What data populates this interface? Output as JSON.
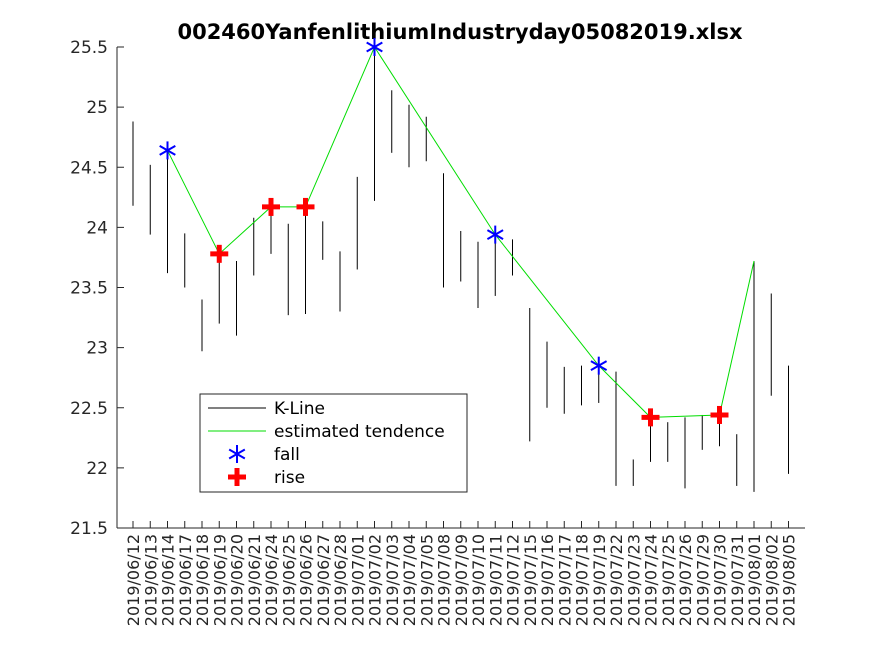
{
  "chart_data": {
    "type": "line",
    "title": "002460YanfenlithiumIndustryday05082019.xlsx",
    "xlabel": "",
    "ylabel": "",
    "ylim": [
      21.5,
      25.5
    ],
    "yticks": [
      21.5,
      22,
      22.5,
      23,
      23.5,
      24,
      24.5,
      25,
      25.5
    ],
    "ytick_labels": [
      "21.5",
      "22",
      "22.5",
      "23",
      "23.5",
      "24",
      "24.5",
      "25",
      "25.5"
    ],
    "categories": [
      "2019/06/12",
      "2019/06/13",
      "2019/06/14",
      "2019/06/17",
      "2019/06/18",
      "2019/06/19",
      "2019/06/20",
      "2019/06/21",
      "2019/06/24",
      "2019/06/25",
      "2019/06/26",
      "2019/06/27",
      "2019/06/28",
      "2019/07/01",
      "2019/07/02",
      "2019/07/03",
      "2019/07/04",
      "2019/07/05",
      "2019/07/08",
      "2019/07/09",
      "2019/07/10",
      "2019/07/11",
      "2019/07/12",
      "2019/07/15",
      "2019/07/16",
      "2019/07/17",
      "2019/07/18",
      "2019/07/19",
      "2019/07/22",
      "2019/07/23",
      "2019/07/24",
      "2019/07/25",
      "2019/07/26",
      "2019/07/29",
      "2019/07/30",
      "2019/07/31",
      "2019/08/01",
      "2019/08/02",
      "2019/08/05"
    ],
    "xtick_labels": [
      "2019/06/12",
      "2019/06/13",
      "2019/06/14",
      "2019/06/17",
      "2019/06/18",
      "2019/06/19",
      "2019/06/20",
      "2019/06/21",
      "2019/06/24",
      "2019/06/25",
      "2019/06/26",
      "2019/06/27",
      "2019/06/28",
      "2019/07/01",
      "2019/07/02",
      "2019/07/03",
      "2019/07/04",
      "2019/07/05",
      "2019/07/08",
      "2019/07/09",
      "2019/07/10",
      "2019/07/11",
      "2019/07/12",
      "2019/07/15",
      "2019/07/16",
      "2019/07/17",
      "2019/07/18",
      "2019/07/19",
      "2019/07/22",
      "2019/07/23",
      "2019/07/24",
      "2019/07/25",
      "2019/07/26",
      "2019/07/29",
      "2019/07/30",
      "2019/07/31",
      "2019/08/01",
      "2019/08/02",
      "2019/08/05"
    ],
    "kline": {
      "name": "K-Line",
      "color": "#000000",
      "low": [
        24.18,
        23.94,
        23.62,
        23.5,
        22.97,
        23.2,
        23.1,
        23.6,
        23.78,
        23.27,
        23.28,
        23.73,
        23.3,
        23.65,
        24.22,
        24.62,
        24.5,
        24.55,
        23.5,
        23.55,
        23.33,
        23.43,
        23.6,
        22.22,
        22.5,
        22.45,
        22.52,
        22.54,
        21.85,
        21.85,
        22.05,
        22.05,
        21.83,
        22.15,
        22.18,
        21.85,
        21.8,
        22.6,
        21.95
      ],
      "high": [
        24.88,
        24.52,
        24.64,
        23.95,
        23.4,
        23.8,
        23.72,
        24.08,
        24.18,
        24.03,
        24.18,
        24.05,
        23.8,
        24.42,
        25.5,
        25.14,
        25.02,
        24.92,
        24.45,
        23.97,
        23.88,
        23.94,
        23.9,
        23.33,
        23.05,
        22.84,
        22.85,
        22.86,
        22.8,
        22.07,
        22.4,
        22.38,
        22.42,
        22.44,
        22.45,
        22.28,
        23.72,
        23.45,
        22.85
      ]
    },
    "tendence": {
      "name": "estimated tendence",
      "color": "#00dd00",
      "points": [
        [
          "2019/06/14",
          24.64
        ],
        [
          "2019/06/19",
          23.78
        ],
        [
          "2019/06/24",
          24.17
        ],
        [
          "2019/06/26",
          24.17
        ],
        [
          "2019/07/02",
          25.5
        ],
        [
          "2019/07/11",
          23.94
        ],
        [
          "2019/07/19",
          22.85
        ],
        [
          "2019/07/24",
          22.42
        ],
        [
          "2019/07/30",
          22.44
        ],
        [
          "2019/08/01",
          23.72
        ]
      ]
    },
    "fall": {
      "name": "fall",
      "color": "#0000ff",
      "points": [
        [
          "2019/06/14",
          24.64
        ],
        [
          "2019/07/02",
          25.5
        ],
        [
          "2019/07/11",
          23.94
        ],
        [
          "2019/07/19",
          22.85
        ]
      ]
    },
    "rise": {
      "name": "rise",
      "color": "#ff0000",
      "points": [
        [
          "2019/06/19",
          23.78
        ],
        [
          "2019/06/24",
          24.17
        ],
        [
          "2019/06/26",
          24.17
        ],
        [
          "2019/07/24",
          22.42
        ],
        [
          "2019/07/30",
          22.44
        ]
      ]
    },
    "legend": {
      "position": "bottom-left",
      "entries": [
        "K-Line",
        "estimated tendence",
        "fall",
        "rise"
      ]
    },
    "grid": false
  }
}
